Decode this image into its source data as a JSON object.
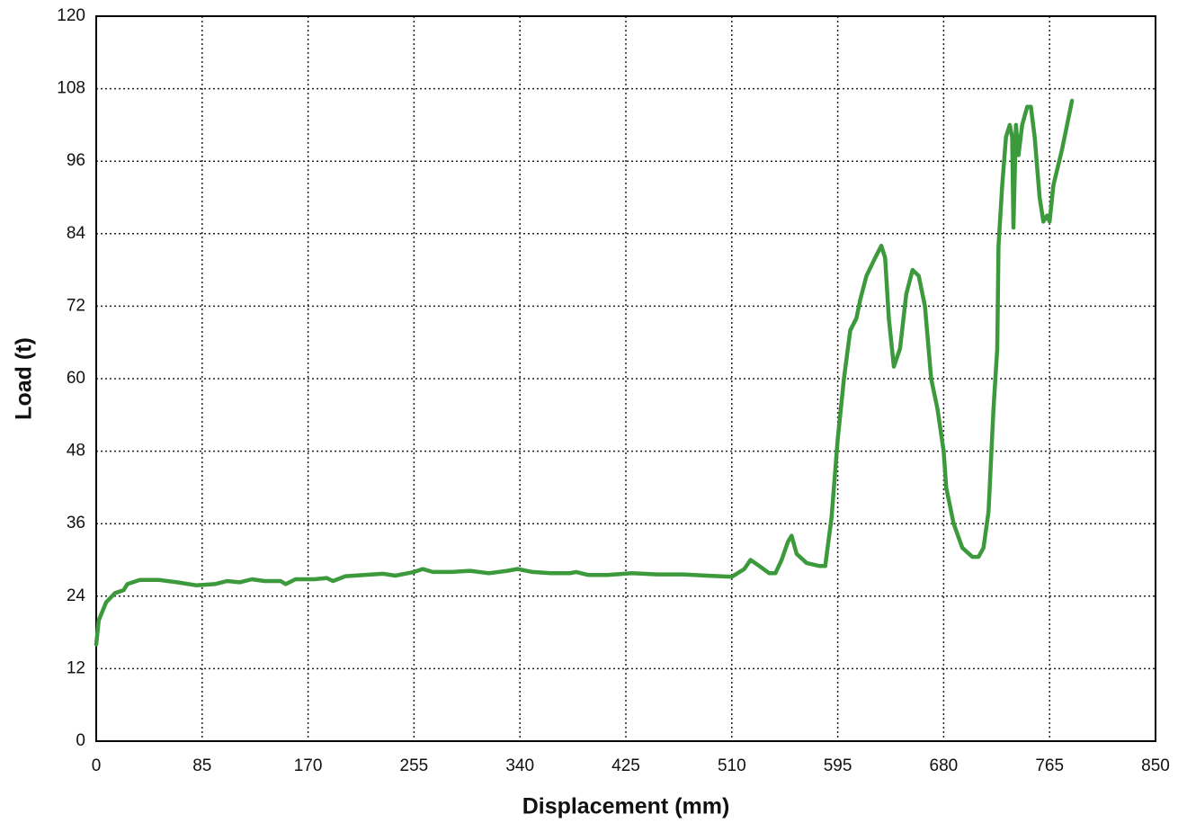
{
  "chart_data": {
    "type": "line",
    "x_label": "Displacement (mm)",
    "y_label": "Load (t)",
    "x": [
      0,
      2,
      8,
      15,
      22,
      25,
      35,
      50,
      65,
      80,
      95,
      105,
      115,
      125,
      135,
      148,
      152,
      160,
      175,
      185,
      190,
      200,
      215,
      230,
      240,
      255,
      262,
      270,
      285,
      300,
      315,
      330,
      338,
      350,
      365,
      380,
      385,
      395,
      410,
      430,
      450,
      470,
      490,
      510,
      520,
      525,
      532,
      540,
      545,
      550,
      555,
      558,
      562,
      570,
      580,
      585,
      590,
      595,
      600,
      605,
      610,
      613,
      618,
      625,
      630,
      633,
      636,
      640,
      645,
      650,
      655,
      660,
      665,
      670,
      675,
      680,
      682,
      688,
      695,
      703,
      708,
      712,
      716,
      720,
      723,
      724,
      727,
      730,
      733,
      735,
      736,
      738,
      740,
      743,
      747,
      750,
      753,
      757,
      760,
      763,
      765,
      768,
      775,
      780,
      783
    ],
    "values": [
      16,
      20,
      23,
      24.5,
      25,
      26,
      26.7,
      26.7,
      26.3,
      25.8,
      26,
      26.5,
      26.3,
      26.8,
      26.5,
      26.5,
      26,
      26.8,
      26.8,
      27,
      26.5,
      27.3,
      27.5,
      27.7,
      27.4,
      28,
      28.5,
      28,
      28,
      28.2,
      27.8,
      28.2,
      28.5,
      28,
      27.8,
      27.8,
      28,
      27.5,
      27.5,
      27.8,
      27.6,
      27.6,
      27.4,
      27.2,
      28.5,
      30,
      29,
      27.8,
      27.8,
      30,
      33,
      34,
      31,
      29.5,
      29,
      29,
      37,
      50,
      60,
      68,
      70,
      73,
      77,
      80,
      82,
      80,
      70,
      62,
      65,
      74,
      78,
      77,
      72,
      60,
      55,
      48,
      42,
      36,
      32,
      30.5,
      30.5,
      32,
      38,
      55,
      65,
      82,
      92,
      100,
      102,
      100,
      85,
      102,
      97,
      102,
      105,
      105,
      100,
      90,
      86,
      87,
      86,
      92,
      98,
      103,
      106
    ],
    "color": "#3c9a3c",
    "xlim": [
      0,
      850
    ],
    "xticks": [
      0,
      85,
      170,
      255,
      340,
      425,
      510,
      595,
      680,
      765,
      850
    ],
    "ylim": [
      0,
      120
    ],
    "yticks": [
      0,
      12,
      24,
      36,
      48,
      60,
      72,
      84,
      96,
      108,
      120
    ],
    "grid": true
  }
}
